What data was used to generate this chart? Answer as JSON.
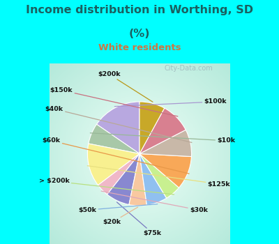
{
  "title_line1": "Income distribution in Worthing, SD",
  "title_line2": "(%)",
  "subtitle": "White residents",
  "title_color": "#1a6060",
  "subtitle_color": "#cc7744",
  "bg_top": "#00ffff",
  "bg_chart_edge": "#b0e8d8",
  "bg_chart_center": "#f0fff8",
  "watermark": "City-Data.com",
  "labels": [
    "$100k",
    "$10k",
    "$125k",
    "$30k",
    "$75k",
    "$20k",
    "$50k",
    "> $200k",
    "$60k",
    "$40k",
    "$150k",
    "$200k"
  ],
  "values": [
    15.5,
    6.5,
    13.5,
    4.0,
    7.5,
    5.5,
    6.5,
    5.0,
    10.5,
    8.5,
    9.5,
    8.0
  ],
  "colors": [
    "#b8a8e0",
    "#a8c8a8",
    "#f8f090",
    "#f0b8c8",
    "#8888d0",
    "#f8c8a0",
    "#90c0f0",
    "#c8f090",
    "#f8a858",
    "#c8b8a8",
    "#d88090",
    "#c8a828"
  ],
  "line_colors": [
    "#a898d0",
    "#98b898",
    "#e8e080",
    "#e0a8b8",
    "#7878c0",
    "#e8b890",
    "#80b0e0",
    "#b8e080",
    "#e89848",
    "#b8a898",
    "#c87080",
    "#b89818"
  ],
  "startangle": 90
}
